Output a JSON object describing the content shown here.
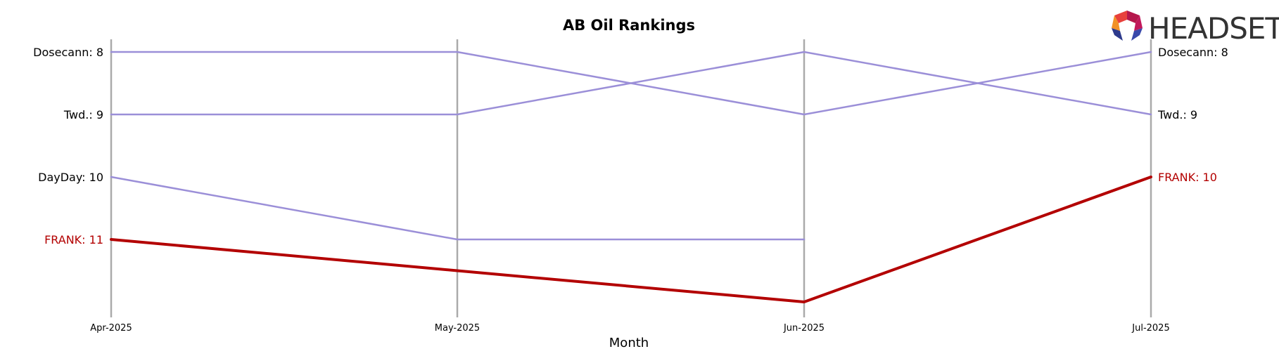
{
  "chart_data": {
    "type": "line",
    "title": "AB Oil Rankings",
    "xlabel": "Month",
    "ylabel": "",
    "categories": [
      "Apr-2025",
      "May-2025",
      "Jun-2025",
      "Jul-2025"
    ],
    "y_inverted": true,
    "ylim": [
      8,
      12
    ],
    "grid": false,
    "series": [
      {
        "name": "Dosecann",
        "values": [
          8,
          8,
          9,
          8
        ],
        "color": "#9b8fd8",
        "highlight": false
      },
      {
        "name": "Twd.",
        "values": [
          9,
          9,
          8,
          9
        ],
        "color": "#9b8fd8",
        "highlight": false
      },
      {
        "name": "DayDay",
        "values": [
          10,
          11,
          11,
          null
        ],
        "color": "#9b8fd8",
        "highlight": false
      },
      {
        "name": "FRANK",
        "values": [
          11,
          11.5,
          12,
          10
        ],
        "color": "#b30000",
        "highlight": true
      }
    ],
    "left_labels": [
      {
        "text": "Dosecann: 8",
        "rank": 8,
        "color": "#000000"
      },
      {
        "text": "Twd.: 9",
        "rank": 9,
        "color": "#000000"
      },
      {
        "text": "DayDay: 10",
        "rank": 10,
        "color": "#000000"
      },
      {
        "text": "FRANK: 11",
        "rank": 11,
        "color": "#b30000"
      }
    ],
    "right_labels": [
      {
        "text": "Dosecann: 8",
        "rank": 8,
        "color": "#000000"
      },
      {
        "text": "Twd.: 9",
        "rank": 9,
        "color": "#000000"
      },
      {
        "text": "FRANK: 10",
        "rank": 10,
        "color": "#b30000"
      }
    ]
  },
  "logo": {
    "text": "HEADSET",
    "colors": [
      "#e8413c",
      "#f29227",
      "#b5174c",
      "#2d3a8c"
    ]
  }
}
